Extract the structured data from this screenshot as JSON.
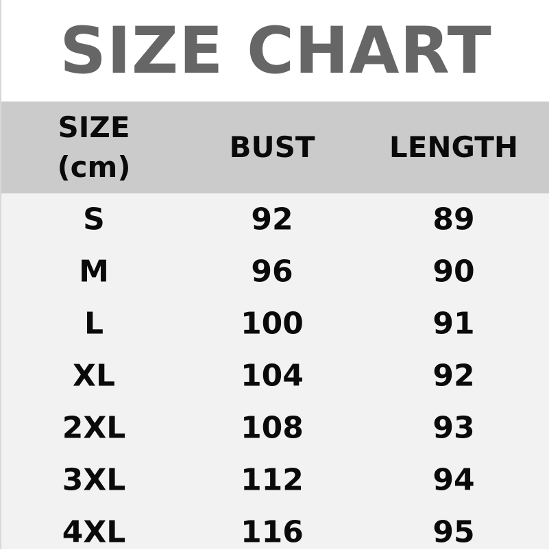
{
  "title": "SIZE CHART",
  "colors": {
    "title": "#666666",
    "header_bg": "#cbcbcb",
    "body_bg": "#f2f2f2",
    "text": "#0a0a0a"
  },
  "chart_data": {
    "type": "table",
    "title": "SIZE CHART",
    "columns": [
      "SIZE (cm)",
      "BUST",
      "LENGTH"
    ],
    "header_lines": [
      [
        "SIZE",
        "(cm)"
      ],
      [
        "BUST"
      ],
      [
        "LENGTH"
      ]
    ],
    "rows": [
      [
        "S",
        "92",
        "89"
      ],
      [
        "M",
        "96",
        "90"
      ],
      [
        "L",
        "100",
        "91"
      ],
      [
        "XL",
        "104",
        "92"
      ],
      [
        "2XL",
        "108",
        "93"
      ],
      [
        "3XL",
        "112",
        "94"
      ],
      [
        "4XL",
        "116",
        "95"
      ]
    ]
  }
}
